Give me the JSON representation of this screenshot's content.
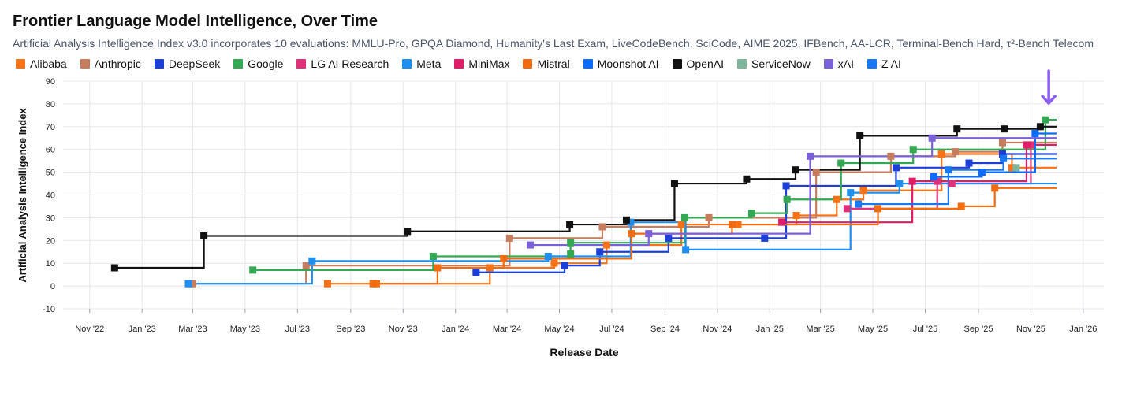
{
  "chart_data": {
    "type": "line",
    "step": true,
    "title": "Frontier Language Model Intelligence, Over Time",
    "subtitle": "Artificial Analysis Intelligence Index v3.0 incorporates 10 evaluations: MMLU-Pro, GPQA Diamond, Humanity's Last Exam, LiveCodeBench, SciCode, AIME 2025, IFBench, AA-LCR, Terminal-Bench Hard, τ²-Bench Telecom",
    "xlabel": "Release Date",
    "ylabel": "Artificial Analysis Intelligence Index",
    "ylim": [
      -10,
      90
    ],
    "yticks": [
      -10,
      0,
      10,
      20,
      30,
      40,
      50,
      60,
      70,
      80,
      90
    ],
    "xlim": [
      "2022-10-01",
      "2026-01-25"
    ],
    "xticks": [
      {
        "date": "2022-11-01",
        "label": "Nov '22"
      },
      {
        "date": "2023-01-01",
        "label": "Jan '23"
      },
      {
        "date": "2023-03-01",
        "label": "Mar '23"
      },
      {
        "date": "2023-05-01",
        "label": "May '23"
      },
      {
        "date": "2023-07-01",
        "label": "Jul '23"
      },
      {
        "date": "2023-09-01",
        "label": "Sep '23"
      },
      {
        "date": "2023-11-01",
        "label": "Nov '23"
      },
      {
        "date": "2024-01-01",
        "label": "Jan '24"
      },
      {
        "date": "2024-03-01",
        "label": "Mar '24"
      },
      {
        "date": "2024-05-01",
        "label": "May '24"
      },
      {
        "date": "2024-07-01",
        "label": "Jul '24"
      },
      {
        "date": "2024-09-01",
        "label": "Sep '24"
      },
      {
        "date": "2024-11-01",
        "label": "Nov '24"
      },
      {
        "date": "2025-01-01",
        "label": "Jan '25"
      },
      {
        "date": "2025-03-01",
        "label": "Mar '25"
      },
      {
        "date": "2025-05-01",
        "label": "May '25"
      },
      {
        "date": "2025-07-01",
        "label": "Jul '25"
      },
      {
        "date": "2025-09-01",
        "label": "Sep '25"
      },
      {
        "date": "2025-11-01",
        "label": "Nov '25"
      },
      {
        "date": "2026-01-01",
        "label": "Jan '26"
      }
    ],
    "grid": true,
    "legend_position": "top",
    "end_date": "2025-12-01",
    "annotation": {
      "type": "arrow",
      "color": "#8b5cf6",
      "points_to": {
        "x": "2025-11-20",
        "y": 73
      }
    },
    "series": [
      {
        "name": "Alibaba",
        "color": "#f97316",
        "points": [
          [
            "2023-08-05",
            1
          ],
          [
            "2023-10-01",
            1
          ],
          [
            "2024-02-10",
            8
          ],
          [
            "2024-04-25",
            10
          ],
          [
            "2024-06-25",
            18
          ],
          [
            "2024-09-20",
            27
          ],
          [
            "2024-11-25",
            27
          ],
          [
            "2025-02-01",
            31
          ],
          [
            "2025-03-20",
            38
          ],
          [
            "2025-04-20",
            42
          ],
          [
            "2025-07-20",
            58
          ],
          [
            "2025-10-10",
            52
          ]
        ]
      },
      {
        "name": "Anthropic",
        "color": "#c77c5e",
        "points": [
          [
            "2023-03-01",
            1
          ],
          [
            "2023-07-11",
            9
          ],
          [
            "2024-03-04",
            21
          ],
          [
            "2024-06-20",
            26
          ],
          [
            "2024-10-22",
            30
          ],
          [
            "2025-02-24",
            50
          ],
          [
            "2025-05-22",
            57
          ],
          [
            "2025-08-05",
            59
          ],
          [
            "2025-09-29",
            63
          ]
        ]
      },
      {
        "name": "DeepSeek",
        "color": "#1d3fd9",
        "points": [
          [
            "2024-01-25",
            6
          ],
          [
            "2024-05-07",
            9
          ],
          [
            "2024-06-17",
            15
          ],
          [
            "2024-09-05",
            21
          ],
          [
            "2024-12-26",
            21
          ],
          [
            "2025-01-20",
            44
          ],
          [
            "2025-05-28",
            52
          ],
          [
            "2025-08-21",
            54
          ],
          [
            "2025-09-29",
            58
          ]
        ]
      },
      {
        "name": "Google",
        "color": "#34a853",
        "points": [
          [
            "2023-05-10",
            7
          ],
          [
            "2023-12-06",
            13
          ],
          [
            "2024-05-14",
            14
          ],
          [
            "2024-05-14",
            19
          ],
          [
            "2024-09-24",
            30
          ],
          [
            "2024-12-11",
            32
          ],
          [
            "2025-01-21",
            38
          ],
          [
            "2025-03-25",
            54
          ],
          [
            "2025-06-17",
            60
          ],
          [
            "2025-11-18",
            73
          ]
        ]
      },
      {
        "name": "LG AI Research",
        "color": "#e0307a",
        "points": [
          [
            "2025-04-01",
            34
          ],
          [
            "2025-07-15",
            46
          ],
          [
            "2025-08-01",
            45
          ],
          [
            "2025-11-01",
            62
          ]
        ]
      },
      {
        "name": "Meta",
        "color": "#1f8ef1",
        "points": [
          [
            "2023-02-24",
            1
          ],
          [
            "2023-07-18",
            11
          ],
          [
            "2024-04-18",
            13
          ],
          [
            "2024-07-23",
            28
          ],
          [
            "2024-09-25",
            16
          ],
          [
            "2025-04-05",
            41
          ],
          [
            "2025-06-01",
            45
          ]
        ]
      },
      {
        "name": "MiniMax",
        "color": "#e11d6a",
        "points": [
          [
            "2025-01-15",
            28
          ],
          [
            "2025-06-16",
            46
          ],
          [
            "2025-10-27",
            62
          ]
        ]
      },
      {
        "name": "Mistral",
        "color": "#f26b0f",
        "points": [
          [
            "2023-09-27",
            1
          ],
          [
            "2023-12-11",
            8
          ],
          [
            "2024-02-26",
            12
          ],
          [
            "2024-07-24",
            23
          ],
          [
            "2024-11-18",
            27
          ],
          [
            "2025-05-07",
            34
          ],
          [
            "2025-08-12",
            35
          ],
          [
            "2025-09-20",
            43
          ]
        ]
      },
      {
        "name": "Moonshot AI",
        "color": "#0a6bff",
        "points": [
          [
            "2025-07-11",
            48
          ],
          [
            "2025-09-05",
            50
          ],
          [
            "2025-11-06",
            67
          ]
        ]
      },
      {
        "name": "OpenAI",
        "color": "#111111",
        "points": [
          [
            "2022-11-30",
            8
          ],
          [
            "2023-03-14",
            22
          ],
          [
            "2023-11-06",
            24
          ],
          [
            "2024-05-13",
            27
          ],
          [
            "2024-07-18",
            29
          ],
          [
            "2024-09-12",
            45
          ],
          [
            "2024-12-05",
            47
          ],
          [
            "2025-01-31",
            51
          ],
          [
            "2025-04-16",
            66
          ],
          [
            "2025-08-07",
            69
          ],
          [
            "2025-10-01",
            69
          ],
          [
            "2025-11-12",
            70
          ]
        ]
      },
      {
        "name": "ServiceNow",
        "color": "#7fb59a",
        "points": [
          [
            "2025-10-15",
            52
          ]
        ]
      },
      {
        "name": "xAI",
        "color": "#7b61d9",
        "points": [
          [
            "2024-03-28",
            18
          ],
          [
            "2024-08-13",
            23
          ],
          [
            "2025-02-17",
            57
          ],
          [
            "2025-07-09",
            65
          ]
        ]
      },
      {
        "name": "Z AI",
        "color": "#1877f2",
        "points": [
          [
            "2025-04-14",
            36
          ],
          [
            "2025-07-28",
            51
          ],
          [
            "2025-09-30",
            56
          ]
        ]
      }
    ]
  }
}
